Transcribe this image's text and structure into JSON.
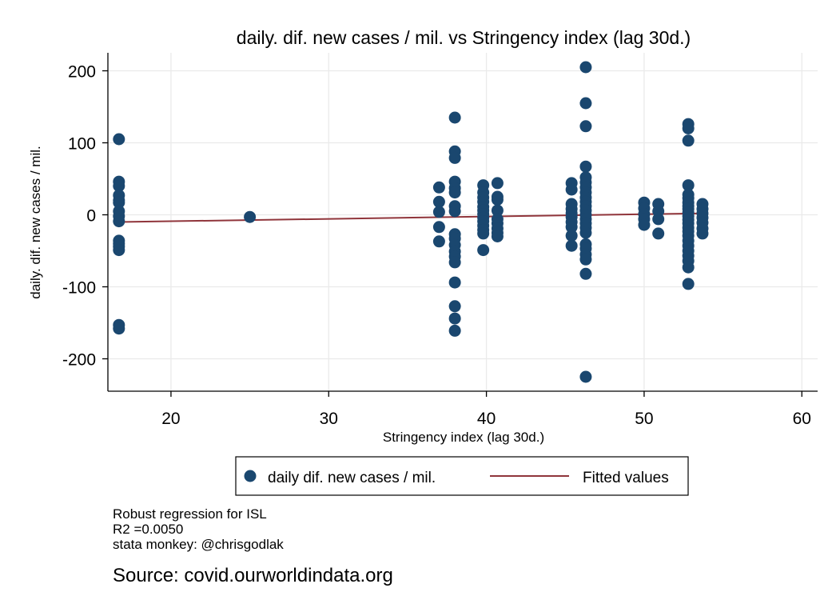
{
  "chart_data": {
    "type": "scatter",
    "title": "daily. dif. new cases / mil. vs Stringency index (lag 30d.)",
    "xlabel": "Stringency index (lag 30d.)",
    "ylabel": "daily. dif. new cases / mil.",
    "xlim": [
      16,
      61
    ],
    "ylim": [
      -245,
      225
    ],
    "xticks": [
      20,
      30,
      40,
      50,
      60
    ],
    "yticks": [
      200,
      100,
      0,
      -100,
      -200
    ],
    "grid": true,
    "legend_position": "bottom",
    "series": [
      {
        "name": "daily dif. new cases / mil.",
        "kind": "scatter",
        "color": "#1a476f",
        "points": [
          [
            16.7,
            105
          ],
          [
            16.7,
            46
          ],
          [
            16.7,
            40
          ],
          [
            16.7,
            27
          ],
          [
            16.7,
            20
          ],
          [
            16.7,
            17
          ],
          [
            16.7,
            5
          ],
          [
            16.7,
            -2
          ],
          [
            16.7,
            -9
          ],
          [
            16.7,
            -36
          ],
          [
            16.7,
            -40
          ],
          [
            16.7,
            -44
          ],
          [
            16.7,
            -49
          ],
          [
            16.7,
            -153
          ],
          [
            16.7,
            -158
          ],
          [
            25.0,
            -3
          ],
          [
            37.0,
            38
          ],
          [
            37.0,
            18
          ],
          [
            37.0,
            4
          ],
          [
            37.0,
            -17
          ],
          [
            37.0,
            -37
          ],
          [
            38.0,
            135
          ],
          [
            38.0,
            88
          ],
          [
            38.0,
            79
          ],
          [
            38.0,
            46
          ],
          [
            38.0,
            37
          ],
          [
            38.0,
            31
          ],
          [
            38.0,
            12
          ],
          [
            38.0,
            5
          ],
          [
            38.0,
            -27
          ],
          [
            38.0,
            -33
          ],
          [
            38.0,
            -42
          ],
          [
            38.0,
            -51
          ],
          [
            38.0,
            -58
          ],
          [
            38.0,
            -66
          ],
          [
            38.0,
            -94
          ],
          [
            38.0,
            -127
          ],
          [
            38.0,
            -144
          ],
          [
            38.0,
            -161
          ],
          [
            39.8,
            41
          ],
          [
            39.8,
            31
          ],
          [
            39.8,
            24
          ],
          [
            39.8,
            18
          ],
          [
            39.8,
            11
          ],
          [
            39.8,
            6
          ],
          [
            39.8,
            1
          ],
          [
            39.8,
            -4
          ],
          [
            39.8,
            -9
          ],
          [
            39.8,
            -15
          ],
          [
            39.8,
            -21
          ],
          [
            39.8,
            -26
          ],
          [
            39.8,
            -49
          ],
          [
            40.7,
            44
          ],
          [
            40.7,
            25
          ],
          [
            40.7,
            21
          ],
          [
            40.7,
            6
          ],
          [
            40.7,
            -6
          ],
          [
            40.7,
            -12
          ],
          [
            40.7,
            -19
          ],
          [
            40.7,
            -25
          ],
          [
            40.7,
            -30
          ],
          [
            45.4,
            44
          ],
          [
            45.4,
            35
          ],
          [
            45.4,
            15
          ],
          [
            45.4,
            8
          ],
          [
            45.4,
            2
          ],
          [
            45.4,
            -3
          ],
          [
            45.4,
            -10
          ],
          [
            45.4,
            -17
          ],
          [
            45.4,
            -29
          ],
          [
            45.4,
            -43
          ],
          [
            46.3,
            205
          ],
          [
            46.3,
            155
          ],
          [
            46.3,
            123
          ],
          [
            46.3,
            67
          ],
          [
            46.3,
            52
          ],
          [
            46.3,
            45
          ],
          [
            46.3,
            38
          ],
          [
            46.3,
            31
          ],
          [
            46.3,
            24
          ],
          [
            46.3,
            18
          ],
          [
            46.3,
            12
          ],
          [
            46.3,
            6
          ],
          [
            46.3,
            0
          ],
          [
            46.3,
            -6
          ],
          [
            46.3,
            -12
          ],
          [
            46.3,
            -18
          ],
          [
            46.3,
            -25
          ],
          [
            46.3,
            -41
          ],
          [
            46.3,
            -47
          ],
          [
            46.3,
            -55
          ],
          [
            46.3,
            -62
          ],
          [
            46.3,
            -82
          ],
          [
            46.3,
            -225
          ],
          [
            50.0,
            17
          ],
          [
            50.0,
            9
          ],
          [
            50.0,
            1
          ],
          [
            50.0,
            -6
          ],
          [
            50.0,
            -14
          ],
          [
            50.9,
            15
          ],
          [
            50.9,
            5
          ],
          [
            50.9,
            -6
          ],
          [
            50.9,
            -26
          ],
          [
            52.8,
            126
          ],
          [
            52.8,
            120
          ],
          [
            52.8,
            103
          ],
          [
            52.8,
            41
          ],
          [
            52.8,
            28
          ],
          [
            52.8,
            23
          ],
          [
            52.8,
            17
          ],
          [
            52.8,
            12
          ],
          [
            52.8,
            8
          ],
          [
            52.8,
            3
          ],
          [
            52.8,
            -2
          ],
          [
            52.8,
            -7
          ],
          [
            52.8,
            -12
          ],
          [
            52.8,
            -18
          ],
          [
            52.8,
            -23
          ],
          [
            52.8,
            -29
          ],
          [
            52.8,
            -36
          ],
          [
            52.8,
            -43
          ],
          [
            52.8,
            -50
          ],
          [
            52.8,
            -57
          ],
          [
            52.8,
            -64
          ],
          [
            52.8,
            -73
          ],
          [
            52.8,
            -96
          ],
          [
            53.7,
            15
          ],
          [
            53.7,
            8
          ],
          [
            53.7,
            2
          ],
          [
            53.7,
            -4
          ],
          [
            53.7,
            -11
          ],
          [
            53.7,
            -19
          ],
          [
            53.7,
            -26
          ]
        ]
      },
      {
        "name": "Fitted values",
        "kind": "line",
        "color": "#90353b",
        "points": [
          [
            16.7,
            -10
          ],
          [
            53.7,
            2
          ]
        ]
      }
    ]
  },
  "notes": {
    "method": "Robust regression for ISL",
    "r2": "R2 =0.0050",
    "credit": "stata monkey: @chrisgodlak"
  },
  "source": "Source: covid.ourworldindata.org"
}
